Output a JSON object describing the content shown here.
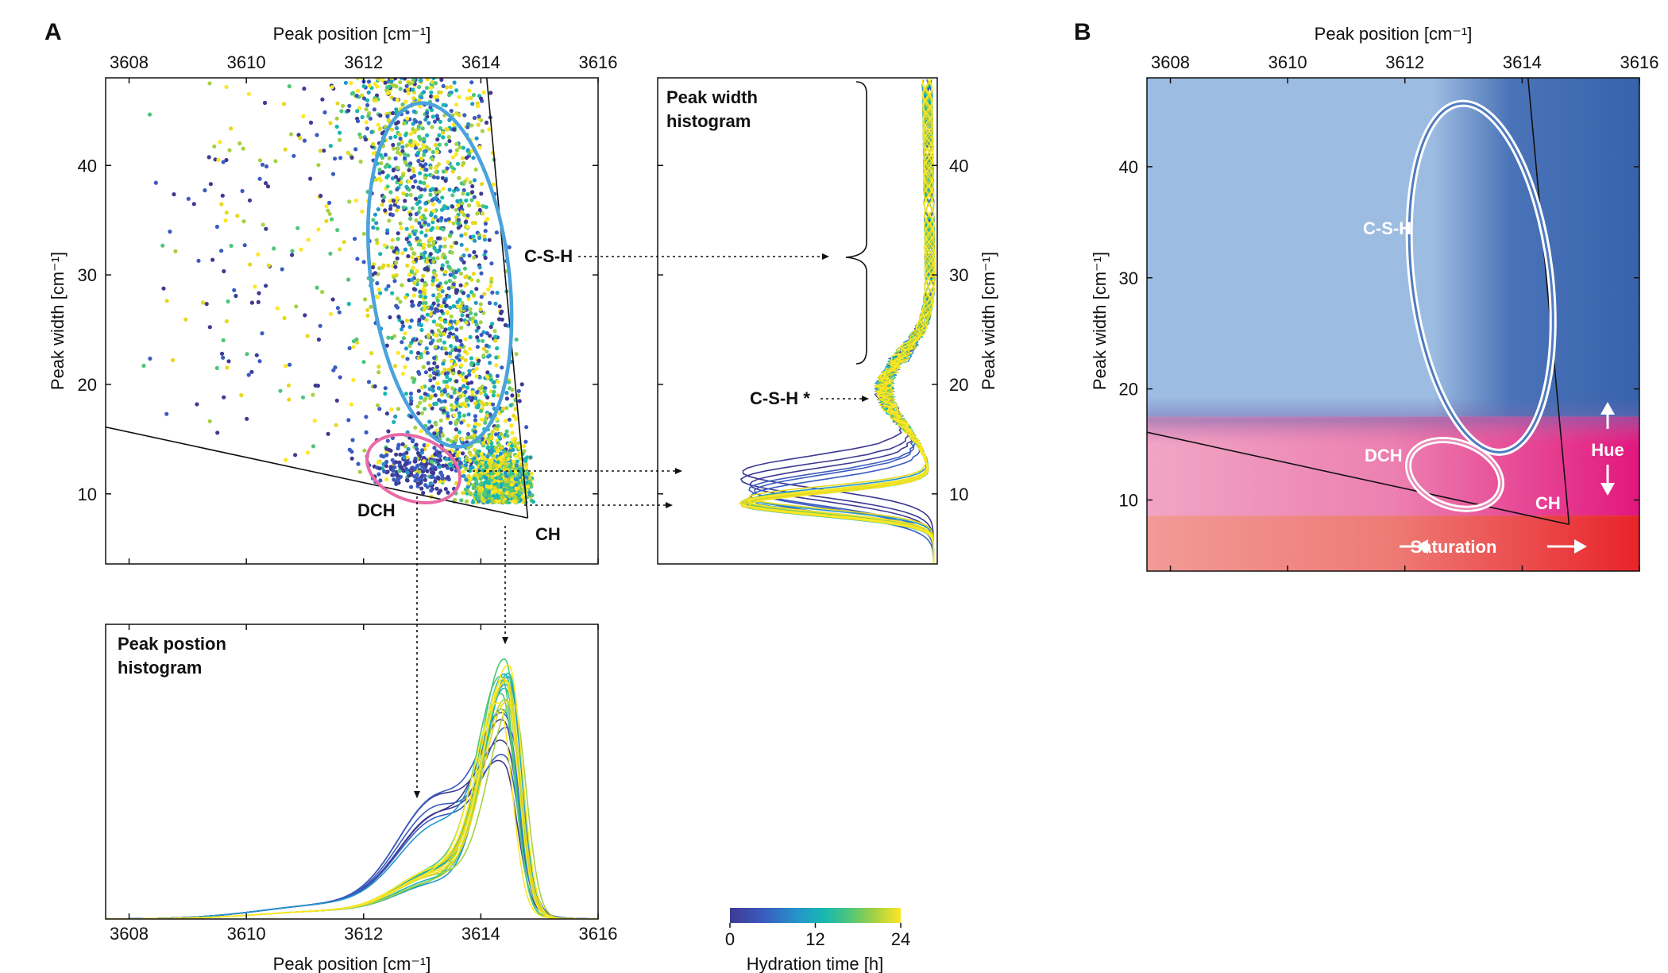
{
  "panels": {
    "a": "A",
    "b": "B"
  },
  "colors": {
    "viridis": [
      "#3e3a93",
      "#3a5cc0",
      "#2496c9",
      "#17b8b1",
      "#4ec67a",
      "#a6d143",
      "#e5d81f",
      "#fde725"
    ],
    "csh_ellipse": "#4aa3dd",
    "dch_ellipse": "#e86aa6",
    "b_light_blue": "#9dbce2",
    "b_dark_blue": "#3762ac",
    "b_pink_light": "#f0a5c6",
    "b_pink_dark": "#e2177e",
    "b_red_light": "#f29a96",
    "b_red_dark": "#e8242a"
  },
  "chart_data": [
    {
      "id": "scatter",
      "type": "scatter",
      "title": "",
      "xlabel_top": "Peak position [cm⁻¹]",
      "ylabel": "Peak width [cm⁻¹]",
      "xlim": [
        3607.6,
        3616
      ],
      "ylim": [
        3.6,
        48
      ],
      "xticks": [
        3608,
        3610,
        3612,
        3614,
        3616
      ],
      "yticks": [
        10,
        20,
        30,
        40
      ],
      "annotations": {
        "csh": "C-S-H",
        "dch": "DCH",
        "ch": "CH"
      },
      "boundary_lines": [
        {
          "from": [
            3607.6,
            16.1
          ],
          "to": [
            3614.8,
            7.8
          ]
        },
        {
          "from": [
            3614.8,
            7.8
          ],
          "to": [
            3614.1,
            48
          ]
        }
      ],
      "regions": {
        "csh_ellipse": {
          "center": [
            3613.3,
            30.0
          ],
          "half_width": 1.18,
          "half_height": 15.8,
          "tilt_deg": -7
        },
        "dch_ellipse": {
          "center": [
            3612.85,
            12.3
          ],
          "half_width": 0.82,
          "half_height": 2.9,
          "tilt_deg": 20
        }
      },
      "color_scale": {
        "label": "Hydration time [h]",
        "ticks": [
          0,
          12,
          24
        ],
        "range": [
          0,
          24
        ]
      }
    },
    {
      "id": "width_histogram",
      "type": "line",
      "title": "Peak width\nhistogram",
      "ylabel": "Peak width [cm⁻¹]",
      "ylim": [
        3.6,
        48
      ],
      "yticks": [
        10,
        20,
        30,
        40
      ],
      "annotations": {
        "csh": "C-S-H",
        "csh_star": "C-S-H *"
      },
      "series_summary": {
        "peak_width_early": 11.9,
        "peak_width_late": 9.2,
        "secondary_shoulder": 19.5,
        "n_curves": 24,
        "color_by": "Hydration time [h]"
      }
    },
    {
      "id": "position_histogram",
      "type": "line",
      "title": "Peak postion\nhistogram",
      "xlabel": "Peak position [cm⁻¹]",
      "xlim": [
        3607.6,
        3616
      ],
      "xticks": [
        3608,
        3610,
        3612,
        3614,
        3616
      ],
      "series_summary": {
        "peak_position_late": 3614.5,
        "shoulder_position_early": 3613.3,
        "n_curves": 24,
        "color_by": "Hydration time [h]"
      }
    },
    {
      "id": "color_map",
      "type": "heatmap",
      "title": "",
      "xlabel_top": "Peak position [cm⁻¹]",
      "ylabel": "Peak width [cm⁻¹]",
      "xlim": [
        3607.6,
        3616
      ],
      "ylim": [
        3.6,
        48
      ],
      "xticks": [
        3608,
        3610,
        3612,
        3614,
        3616
      ],
      "yticks": [
        10,
        20,
        30,
        40
      ],
      "annotations": {
        "csh": "C-S-H",
        "dch": "DCH",
        "ch": "CH",
        "hue": "Hue",
        "saturation": "Saturation"
      },
      "bands": [
        {
          "name": "blue",
          "y_from": 17.5,
          "y_to": 48
        },
        {
          "name": "pink",
          "y_from": 8.6,
          "y_to": 17.5
        },
        {
          "name": "red",
          "y_from": 3.6,
          "y_to": 8.6
        }
      ]
    }
  ]
}
